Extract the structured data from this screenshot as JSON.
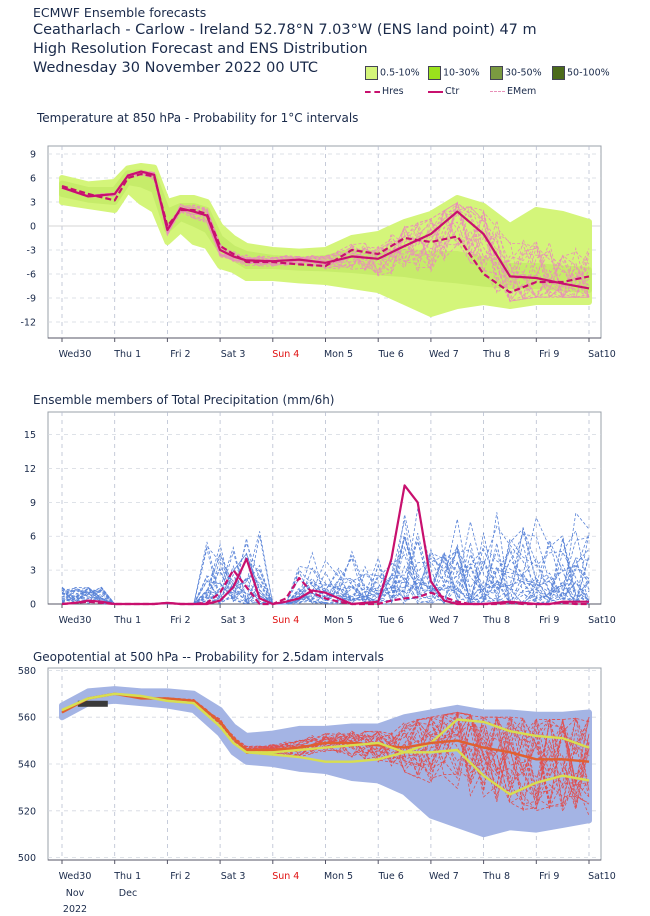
{
  "header": {
    "source": "ECMWF Ensemble forecasts",
    "location": "Ceatharlach - Carlow - Ireland 52.78°N 7.03°W (ENS land point) 47 m",
    "subtitle": "High Resolution Forecast and ENS Distribution",
    "date": "Wednesday 30 November 2022 00 UTC"
  },
  "legend": {
    "bands": [
      {
        "label": "0.5-10%",
        "color": "#d4f57a"
      },
      {
        "label": "10-30%",
        "color": "#9be21c"
      },
      {
        "label": "30-50%",
        "color": "#7a9a40"
      },
      {
        "label": "50-100%",
        "color": "#4b6a1a"
      }
    ],
    "lines": [
      {
        "label": "Hres",
        "color": "#c8106e",
        "style": "dashed"
      },
      {
        "label": "Ctr",
        "color": "#c8106e",
        "style": "solid"
      },
      {
        "label": "EMem",
        "color": "#e890b8",
        "style": "dashed"
      }
    ]
  },
  "x_axis": {
    "day_labels": [
      "Wed30",
      "Thu 1",
      "Fri 2",
      "Sat 3",
      "Sun 4",
      "Mon 5",
      "Tue 6",
      "Wed 7",
      "Thu 8",
      "Fri 9",
      "Sat10"
    ],
    "sunday_color": "#e01010",
    "month_labels": [
      "Nov",
      "Dec"
    ],
    "year_label": "2022"
  },
  "chart_data": [
    {
      "type": "line",
      "title": "Temperature at 850 hPa - Probability for 1°C intervals",
      "ylim": [
        -14,
        10
      ],
      "yticks": [
        9,
        6,
        3,
        0,
        -3,
        -6,
        -9,
        -12
      ],
      "x": [
        0,
        0.5,
        1,
        1.25,
        1.5,
        1.75,
        2,
        2.25,
        2.5,
        2.75,
        3,
        3.25,
        3.5,
        4,
        4.5,
        5,
        5.5,
        6,
        6.5,
        7,
        7.5,
        8,
        8.5,
        9,
        9.5,
        10
      ],
      "series": [
        {
          "name": "Hres",
          "style": "dashed",
          "color": "#c8106e",
          "values": [
            5,
            4,
            3.2,
            6,
            6.5,
            6.2,
            0,
            2,
            2,
            1.5,
            -2.5,
            -3.5,
            -4.5,
            -4.5,
            -4.8,
            -5,
            -3,
            -3.5,
            -1.5,
            -2,
            -1.3,
            -6,
            -8.3,
            -7,
            -7,
            -6.3
          ]
        },
        {
          "name": "Ctr",
          "style": "solid",
          "color": "#c8106e",
          "values": [
            4.8,
            3.7,
            4,
            6.3,
            6.8,
            6.4,
            -0.5,
            2.2,
            1.8,
            1.3,
            -3,
            -3.8,
            -4.3,
            -4.4,
            -4.2,
            -4.6,
            -3.8,
            -4.1,
            -2.5,
            -1,
            1.8,
            -1,
            -6.3,
            -6.5,
            -7.2,
            -7.8
          ]
        }
      ],
      "band_outer": {
        "upper": [
          6,
          5.2,
          5.5,
          7.2,
          7.5,
          7.3,
          3,
          3.5,
          3.5,
          3,
          0,
          -1.5,
          -2.5,
          -3,
          -3.2,
          -3,
          -1.5,
          -1,
          0.5,
          1.5,
          3.5,
          2.5,
          0,
          2,
          1.5,
          0.5
        ],
        "lower": [
          3,
          2.5,
          2,
          4.5,
          3,
          2,
          -2,
          -0.5,
          -2,
          -2.5,
          -5,
          -5.5,
          -6.5,
          -6.5,
          -6.8,
          -7,
          -7.5,
          -8,
          -9.5,
          -11,
          -10,
          -9.5,
          -10,
          -9.5,
          -9.5,
          -9.5
        ]
      },
      "band_inner": {
        "upper": [
          5.3,
          4.5,
          4.5,
          6.6,
          6.7,
          6.2,
          1.8,
          2.5,
          2.5,
          2,
          -1.5,
          -2.8,
          -3.5,
          -4,
          -4.2,
          -4,
          -3.2,
          -3.5,
          -3.2,
          -3.5,
          -3.5,
          -4.2,
          -5,
          -5,
          -5.3,
          -5.5
        ],
        "lower": [
          4,
          3.3,
          3,
          5.5,
          5.2,
          4.5,
          -0.5,
          1,
          0.3,
          -0.5,
          -3,
          -4,
          -5,
          -5,
          -5.2,
          -5.3,
          -5.5,
          -5.8,
          -6,
          -6.5,
          -6.8,
          -7.2,
          -7.5,
          -7.5,
          -7.8,
          -8
        ]
      }
    },
    {
      "type": "line",
      "title": "Ensemble members of Total Precipitation (mm/6h)",
      "ylim": [
        0,
        17
      ],
      "yticks": [
        15,
        12,
        9,
        6,
        3,
        0
      ],
      "x": [
        0,
        0.25,
        0.5,
        0.75,
        1,
        1.25,
        1.5,
        1.75,
        2,
        2.25,
        2.5,
        2.75,
        3,
        3.25,
        3.5,
        3.75,
        4,
        4.25,
        4.5,
        4.75,
        5,
        5.25,
        5.5,
        5.75,
        6,
        6.25,
        6.5,
        6.75,
        7,
        7.25,
        7.5,
        7.75,
        8,
        8.25,
        8.5,
        8.75,
        9,
        9.25,
        9.5,
        9.75,
        10
      ],
      "series": [
        {
          "name": "Hres",
          "style": "dashed",
          "color": "#c8106e",
          "values": [
            0,
            0.1,
            0.2,
            0.1,
            0,
            0,
            0,
            0,
            0.1,
            0,
            0,
            0.1,
            1,
            3,
            1.5,
            0,
            0,
            0.5,
            2.3,
            1,
            0.5,
            0.2,
            0,
            0,
            0,
            0.3,
            0.5,
            0.6,
            1,
            0.6,
            0.2,
            0,
            0,
            0,
            0.1,
            0,
            0,
            0,
            0.1,
            0,
            0
          ]
        },
        {
          "name": "Ctr",
          "style": "solid",
          "color": "#c8106e",
          "values": [
            0,
            0.1,
            0.3,
            0.2,
            0,
            0,
            0,
            0,
            0.1,
            0,
            0,
            0,
            0.3,
            1.5,
            4,
            0.5,
            0,
            0.2,
            0.5,
            1.2,
            1,
            0.5,
            0,
            0.1,
            0.2,
            4,
            10.5,
            9,
            2,
            0.3,
            0,
            0,
            0,
            0.1,
            0.2,
            0.1,
            0,
            0,
            0.2,
            0.2,
            0.2
          ]
        }
      ]
    },
    {
      "type": "line",
      "title": "Geopotential at 500 hPa -- Probability for 2.5dam intervals",
      "ylim": [
        499,
        581
      ],
      "yticks": [
        580,
        560,
        540,
        520,
        500
      ],
      "x": [
        0,
        0.5,
        1,
        1.5,
        2,
        2.5,
        3,
        3.25,
        3.5,
        4,
        4.5,
        5,
        5.5,
        6,
        6.5,
        7,
        7.5,
        8,
        8.5,
        9,
        9.5,
        10
      ],
      "series": [
        {
          "name": "Ctr",
          "style": "solid",
          "color": "#d8de50",
          "values": [
            563,
            568,
            570,
            569,
            567,
            566,
            556,
            549,
            545,
            544,
            543,
            541,
            541,
            542,
            545,
            549,
            559,
            558,
            554,
            552,
            551,
            547
          ]
        },
        {
          "name": "Hres",
          "style": "solid",
          "color": "#e06030",
          "values": [
            562,
            568,
            570,
            568,
            568,
            567,
            558,
            551,
            546,
            546,
            547,
            549,
            549,
            548,
            547,
            549,
            550,
            547,
            545,
            542,
            542,
            541
          ]
        },
        {
          "name": "Mem",
          "style": "solid",
          "color": "#d8de50",
          "values": [
            563,
            568,
            570,
            569,
            567,
            566,
            556,
            549,
            545,
            545,
            546,
            547,
            548,
            549,
            545,
            545,
            546,
            535,
            527,
            532,
            535,
            533
          ]
        }
      ],
      "band_outer": {
        "upper": [
          565,
          571,
          572,
          571,
          571,
          570,
          563,
          556,
          552,
          553,
          555,
          555,
          556,
          556,
          560,
          562,
          564,
          562,
          562,
          561,
          561,
          562
        ],
        "lower": [
          560,
          566,
          567,
          566,
          565,
          563,
          553,
          545,
          541,
          540,
          538,
          537,
          534,
          533,
          528,
          518,
          514,
          510,
          513,
          512,
          514,
          516
        ]
      }
    }
  ]
}
